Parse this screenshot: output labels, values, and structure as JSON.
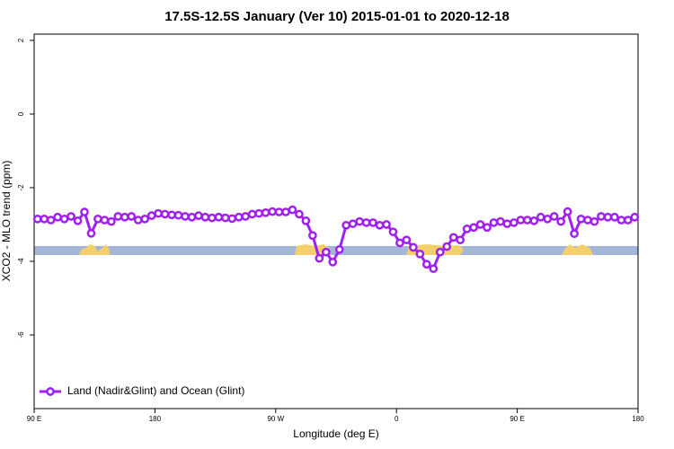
{
  "chart_data": {
    "type": "line",
    "title": "17.5S-12.5S January (Ver 10)   2015-01-01 to 2020-12-18",
    "x_label": "Longitude (deg E)",
    "y_label": "XCO2 - MLO trend (ppm)",
    "xlim": [
      90,
      540
    ],
    "ylim": [
      -8,
      2.17
    ],
    "xticks": [
      {
        "value": 90,
        "label": "90 E"
      },
      180,
      {
        "value": 270,
        "label": "90 W"
      },
      {
        "value": 360,
        "label": "0"
      },
      {
        "value": 450,
        "label": "90 E"
      },
      {
        "value": 540,
        "label": "180"
      }
    ],
    "yticks": [
      2,
      0,
      -2,
      -4,
      -6
    ],
    "legend": "bottomleft",
    "series": [
      {
        "name": "Land (Nadir&Glint) and Ocean (Glint)",
        "color": "#a020f0",
        "x": [
          92.5,
          97.5,
          102.5,
          107.5,
          112.5,
          117.5,
          122.5,
          127.5,
          132.5,
          137.5,
          142.5,
          147.5,
          152.5,
          157.5,
          162.5,
          167.5,
          172.5,
          177.5,
          182.5,
          187.5,
          192.5,
          197.5,
          202.5,
          207.5,
          212.5,
          217.5,
          222.5,
          227.5,
          232.5,
          237.5,
          242.5,
          247.5,
          252.5,
          257.5,
          262.5,
          267.5,
          272.5,
          277.5,
          282.5,
          287.5,
          292.5,
          297.5,
          302.5,
          307.5,
          312.5,
          317.5,
          322.5,
          327.5,
          332.5,
          337.5,
          342.5,
          347.5,
          352.5,
          357.5,
          362.5,
          367.5,
          372.5,
          377.5,
          382.5,
          387.5,
          392.5,
          397.5,
          402.5,
          407.5,
          412.5,
          417.5,
          422.5,
          427.5,
          432.5,
          437.5,
          442.5,
          447.5,
          452.5,
          457.5,
          462.5,
          467.5,
          472.5,
          477.5,
          482.5,
          487.5,
          492.5,
          497.5,
          502.5,
          507.5,
          512.5,
          517.5,
          522.5,
          527.5,
          532.5,
          537.5
        ],
        "values": [
          -2.85,
          -2.85,
          -2.88,
          -2.8,
          -2.85,
          -2.78,
          -2.9,
          -2.66,
          -3.24,
          -2.85,
          -2.88,
          -2.92,
          -2.78,
          -2.8,
          -2.78,
          -2.88,
          -2.85,
          -2.76,
          -2.7,
          -2.72,
          -2.74,
          -2.75,
          -2.78,
          -2.8,
          -2.76,
          -2.8,
          -2.82,
          -2.8,
          -2.82,
          -2.84,
          -2.8,
          -2.78,
          -2.72,
          -2.7,
          -2.68,
          -2.65,
          -2.66,
          -2.66,
          -2.6,
          -2.72,
          -2.9,
          -3.3,
          -3.92,
          -3.75,
          -4.02,
          -3.68,
          -3.02,
          -2.98,
          -2.92,
          -2.95,
          -2.95,
          -3.02,
          -3.0,
          -3.2,
          -3.5,
          -3.42,
          -3.62,
          -3.8,
          -4.08,
          -4.2,
          -3.75,
          -3.6,
          -3.35,
          -3.42,
          -3.12,
          -3.08,
          -3.0,
          -3.08,
          -2.95,
          -2.92,
          -2.98,
          -2.95,
          -2.88,
          -2.88,
          -2.9,
          -2.8,
          -2.85,
          -2.78,
          -2.92,
          -2.65,
          -3.25,
          -2.85,
          -2.88,
          -2.92,
          -2.78,
          -2.8,
          -2.8,
          -2.88,
          -2.88,
          -2.8
        ]
      }
    ]
  }
}
